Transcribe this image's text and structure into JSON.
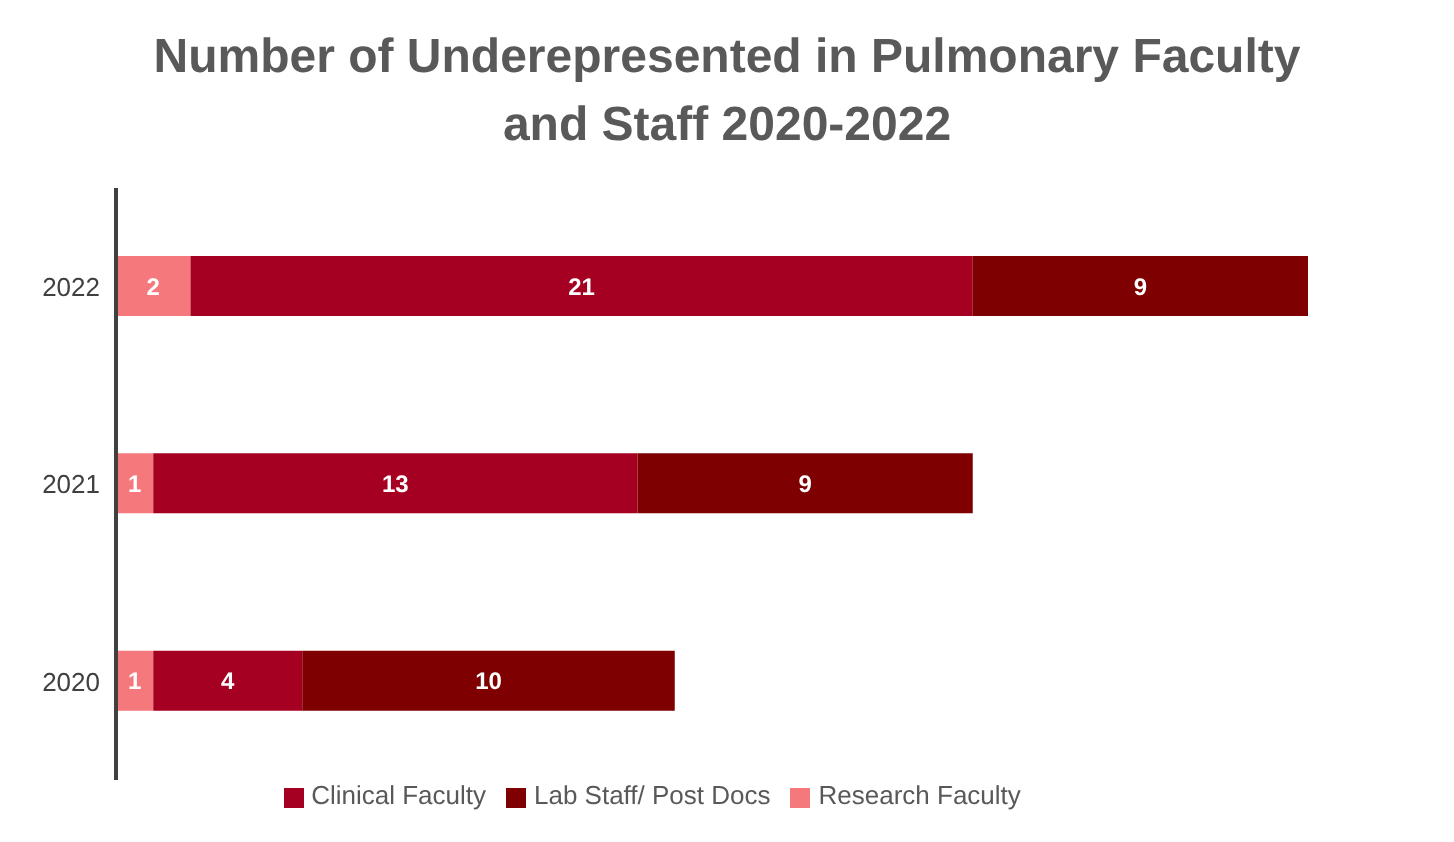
{
  "chart_data": {
    "type": "bar",
    "orientation": "horizontal",
    "stacked": true,
    "title": "Number of Underepresented in Pulmonary Faculty and Staff 2020-2022",
    "categories": [
      "2022",
      "2021",
      "2020"
    ],
    "series": [
      {
        "name": "Research Faculty",
        "color": "#f4787c",
        "values": [
          2,
          1,
          1
        ]
      },
      {
        "name": "Clinical Faculty",
        "color": "#a50021",
        "values": [
          21,
          13,
          4
        ]
      },
      {
        "name": "Lab Staff/ Post Docs",
        "color": "#7f0000",
        "values": [
          9,
          9,
          10
        ]
      }
    ],
    "tick_labels": "y",
    "legend": "bottom",
    "data_labels": true
  }
}
